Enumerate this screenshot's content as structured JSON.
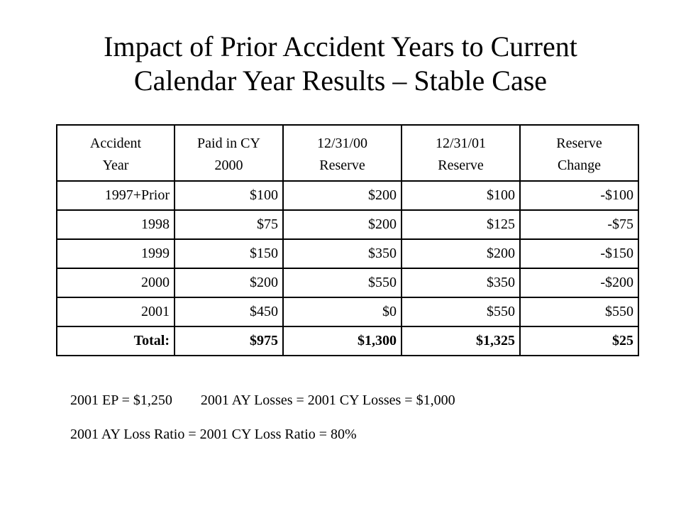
{
  "title": {
    "line1": "Impact of Prior Accident Years to Current",
    "line2": "Calendar Year Results – Stable Case"
  },
  "table": {
    "headers": [
      [
        "Accident",
        "Year"
      ],
      [
        "Paid in CY",
        "2000"
      ],
      [
        "12/31/00",
        "Reserve"
      ],
      [
        "12/31/01",
        "Reserve"
      ],
      [
        "Reserve",
        "Change"
      ]
    ],
    "rows": [
      [
        "1997+Prior",
        "$100",
        "$200",
        "$100",
        "-$100"
      ],
      [
        "1998",
        "$75",
        "$200",
        "$125",
        "-$75"
      ],
      [
        "1999",
        "$150",
        "$350",
        "$200",
        "-$150"
      ],
      [
        "2000",
        "$200",
        "$550",
        "$350",
        "-$200"
      ],
      [
        "2001",
        "$450",
        "$0",
        "$550",
        "$550"
      ]
    ],
    "total": [
      "Total:",
      "$975",
      "$1,300",
      "$1,325",
      "$25"
    ]
  },
  "notes": {
    "line1": "2001 EP = $1,250        2001 AY Losses = 2001 CY Losses = $1,000",
    "line2": "2001 AY Loss Ratio = 2001 CY Loss Ratio = 80%"
  }
}
